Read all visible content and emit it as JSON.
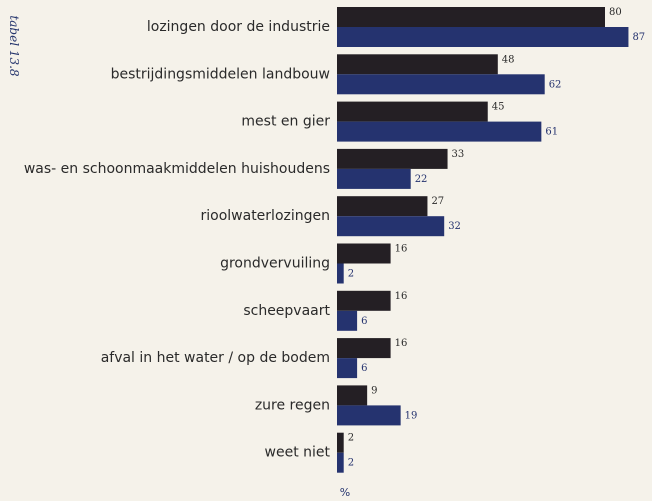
{
  "table_tag": "tabel 13.8",
  "chart_data": {
    "type": "bar",
    "orientation": "horizontal",
    "categories": [
      "lozingen door de industrie",
      "bestrijdingsmiddelen landbouw",
      "mest en gier",
      "was- en schoonmaakmiddelen huishoudens",
      "rioolwaterlozingen",
      "grondvervuiling",
      "scheepvaart",
      "afval in het water / op de bodem",
      "zure regen",
      "weet niet"
    ],
    "series": [
      {
        "values": [
          80,
          48,
          45,
          33,
          27,
          16,
          16,
          16,
          9,
          2
        ],
        "color": "#241f24"
      },
      {
        "values": [
          87,
          62,
          61,
          22,
          32,
          2,
          6,
          6,
          19,
          2
        ],
        "color": "#25336f"
      }
    ],
    "value_labels": {
      "series0": [
        "80",
        "48",
        "45",
        "33",
        "27",
        "16",
        "16",
        "16",
        "9",
        "2"
      ],
      "series1": [
        "87",
        "62",
        "61",
        "22",
        "32",
        "2",
        "6",
        "6",
        "19",
        "2"
      ]
    },
    "xlabel": "%",
    "xlim": [
      0,
      90
    ],
    "grid": false,
    "legend": "none"
  }
}
